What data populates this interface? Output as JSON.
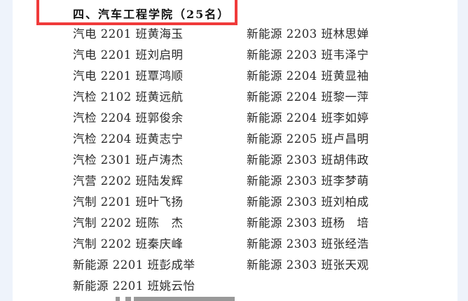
{
  "section_title": "四、汽车工程学院（25名）",
  "highlight_color": "#f03a3a",
  "left_column": [
    "汽电 2201 班黄海玉",
    "汽电 2201 班刘启明",
    "汽电 2201 班覃鸿顺",
    "汽检 2102 班黄远航",
    "汽检 2204 班郭俊余",
    "汽检 2204 班黄志宁",
    "汽检 2301 班卢涛杰",
    "汽营 2202 班陆发辉",
    "汽制 2201 班叶飞扬",
    "汽制 2202 班陈　杰",
    "汽制 2202 班秦庆峰",
    "新能源 2201 班彭成举",
    "新能源 2201 班姚云怡"
  ],
  "right_column": [
    "新能源 2203 班林思婵",
    "新能源 2203 班韦泽宁",
    "新能源 2204 班黄显袖",
    "新能源 2204 班黎一萍",
    "新能源 2204 班李如婷",
    "新能源 2205 班卢昌明",
    "新能源 2303 班胡伟政",
    "新能源 2303 班李梦萌",
    "新能源 2303 班刘柏成",
    "新能源 2303 班杨　培",
    "新能源 2303 班张经浩",
    "新能源 2303 班张天观"
  ]
}
